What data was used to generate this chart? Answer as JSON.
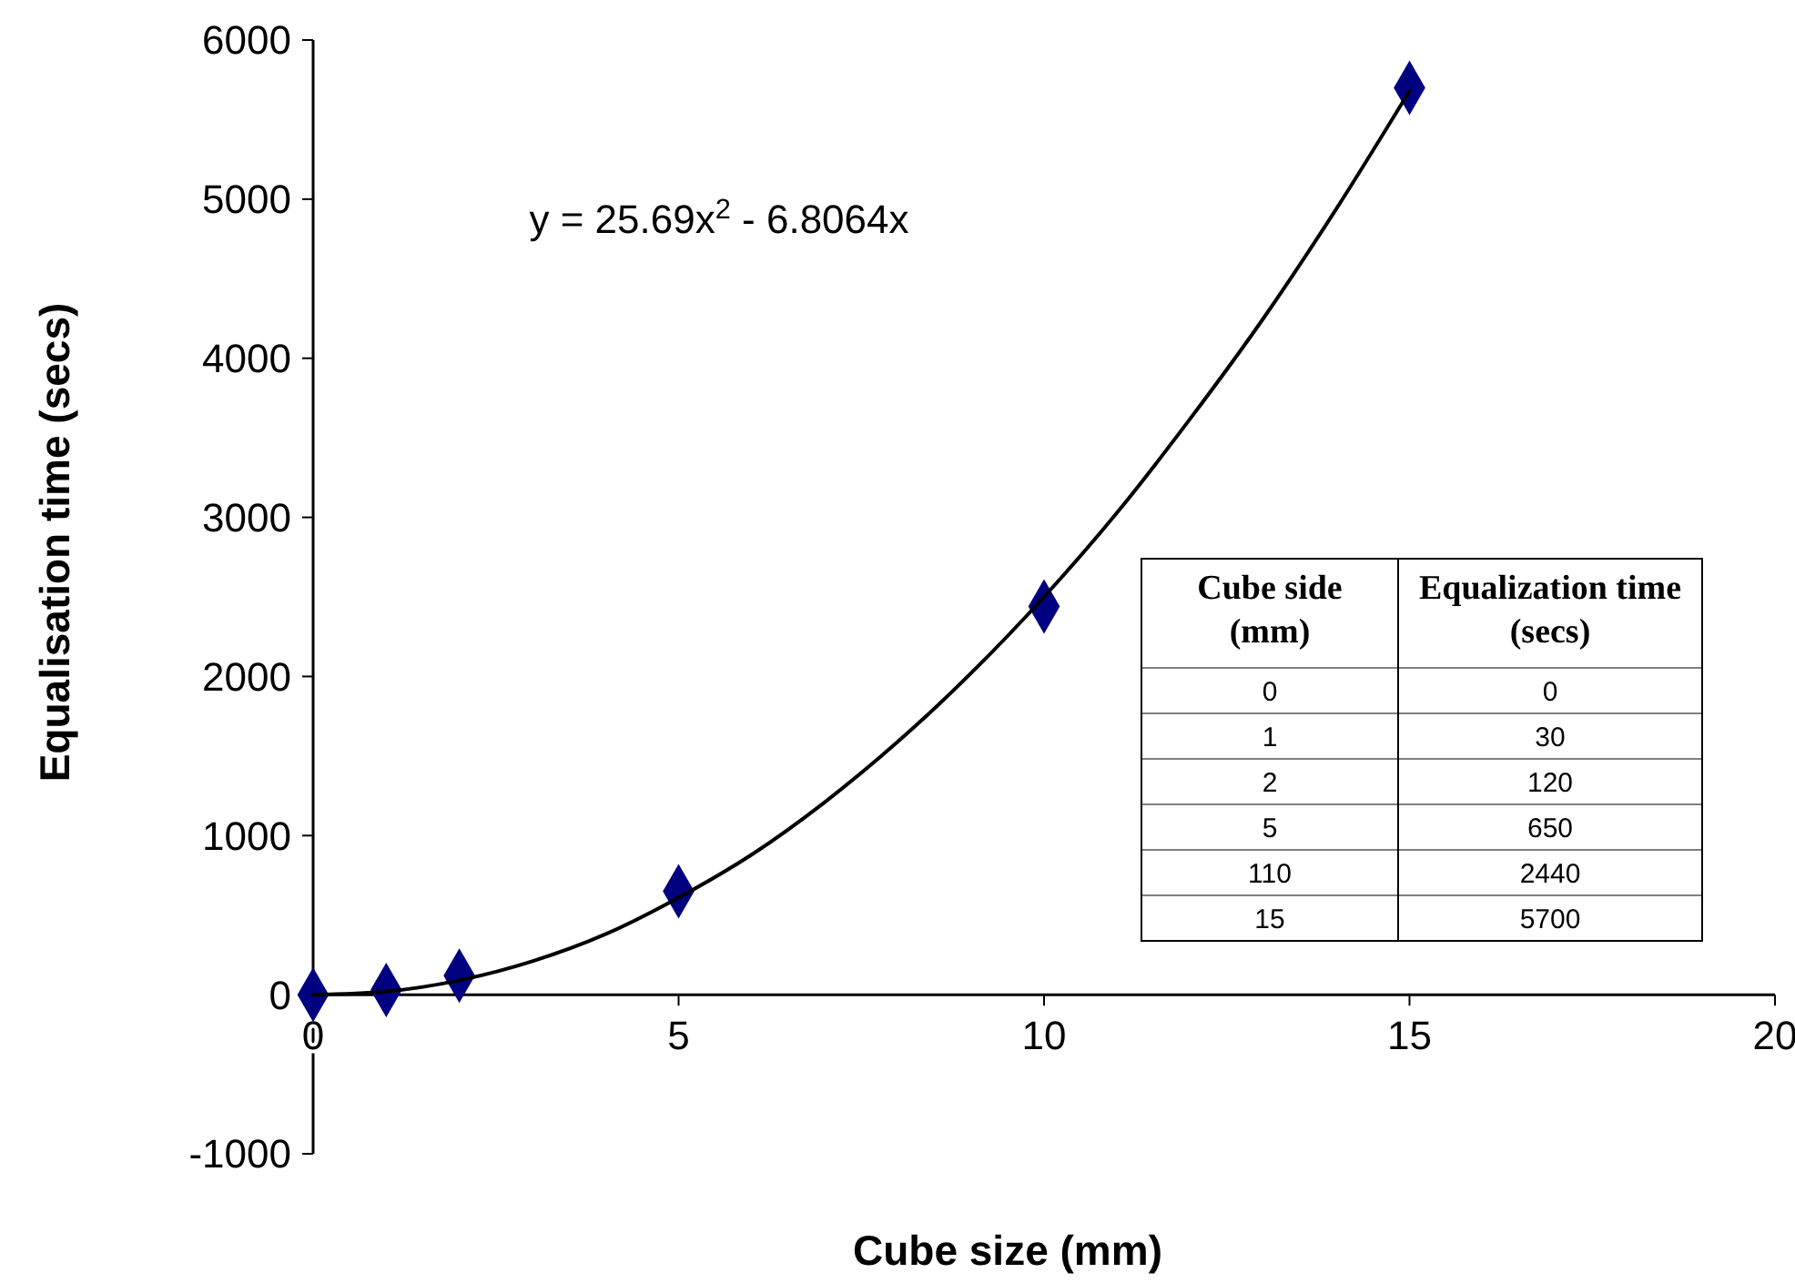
{
  "chart_data": {
    "type": "scatter",
    "xlabel": "Cube size (mm)",
    "ylabel": "Equalisation time (secs)",
    "xlim": [
      0,
      20
    ],
    "xticks": [
      0,
      5,
      10,
      15,
      20
    ],
    "ylim": [
      -1000,
      6000
    ],
    "yticks": [
      -1000,
      0,
      1000,
      2000,
      3000,
      4000,
      5000,
      6000
    ],
    "series": [
      {
        "marker": "diamond",
        "color": "#000080",
        "x": [
          0,
          1,
          2,
          5,
          10,
          15
        ],
        "values": [
          0,
          30,
          120,
          650,
          2440,
          5700
        ]
      },
      {
        "type": "line",
        "color": "#000000",
        "x": [
          0,
          1,
          2,
          3,
          4,
          5,
          6,
          7,
          8,
          9,
          10,
          11,
          12,
          13,
          14,
          15
        ],
        "values": [
          0,
          20,
          90,
          210,
          380,
          610,
          880,
          1210,
          1590,
          2020,
          2500,
          3030,
          3620,
          4250,
          4940,
          5680
        ]
      }
    ],
    "annotations": [
      "y = 25.69x$^{2}$ - 6.8064x",
      "Cube side (mm)",
      "Equalization time (secs)",
      "0",
      "0",
      "1",
      "30",
      "2",
      "120",
      "5",
      "650",
      "110",
      "2440",
      "15",
      "5700"
    ]
  }
}
